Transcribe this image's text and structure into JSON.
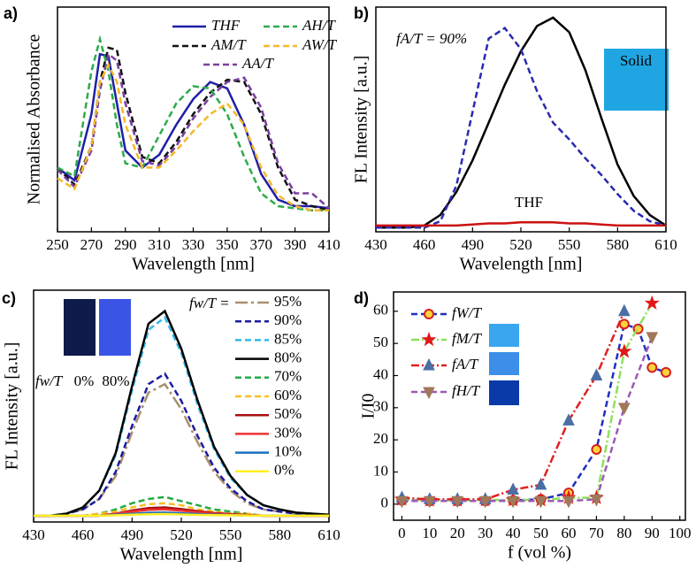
{
  "chart_data": [
    {
      "type": "line",
      "panel_label": "a)",
      "xlabel": "Wavelength [nm]",
      "ylabel": "Normalised Absorbance",
      "xlim": [
        250,
        410
      ],
      "xticks": [
        250,
        270,
        290,
        310,
        330,
        350,
        370,
        390,
        410
      ],
      "ylim": [
        0,
        1.05
      ],
      "x": [
        250,
        260,
        270,
        275,
        280,
        285,
        290,
        300,
        310,
        320,
        330,
        340,
        350,
        360,
        370,
        380,
        390,
        400,
        410
      ],
      "series": [
        {
          "name": "THF",
          "color": "#1f1fa8",
          "dash": "solid",
          "values": [
            0.3,
            0.24,
            0.55,
            0.83,
            0.82,
            0.6,
            0.38,
            0.3,
            0.36,
            0.5,
            0.62,
            0.7,
            0.67,
            0.5,
            0.27,
            0.15,
            0.12,
            0.12,
            0.11
          ]
        },
        {
          "name": "AM/T",
          "color": "#111111",
          "dash": "dashed",
          "values": [
            0.3,
            0.22,
            0.4,
            0.7,
            0.86,
            0.85,
            0.65,
            0.35,
            0.32,
            0.42,
            0.55,
            0.65,
            0.71,
            0.7,
            0.55,
            0.3,
            0.15,
            0.12,
            0.1
          ]
        },
        {
          "name": "AA/T",
          "color": "#7a3fa0",
          "dash": "dashed",
          "values": [
            0.29,
            0.21,
            0.38,
            0.66,
            0.83,
            0.8,
            0.6,
            0.33,
            0.31,
            0.4,
            0.53,
            0.63,
            0.7,
            0.72,
            0.58,
            0.32,
            0.18,
            0.18,
            0.11
          ]
        },
        {
          "name": "AH/T",
          "color": "#2eaa4a",
          "dash": "dashed",
          "values": [
            0.3,
            0.26,
            0.75,
            0.9,
            0.75,
            0.5,
            0.32,
            0.3,
            0.45,
            0.6,
            0.68,
            0.67,
            0.55,
            0.35,
            0.18,
            0.12,
            0.11,
            0.1,
            0.1
          ]
        },
        {
          "name": "AW/T",
          "color": "#f5b82a",
          "dash": "dashed",
          "values": [
            0.25,
            0.2,
            0.4,
            0.7,
            0.78,
            0.7,
            0.5,
            0.3,
            0.3,
            0.38,
            0.47,
            0.55,
            0.6,
            0.5,
            0.3,
            0.17,
            0.12,
            0.1,
            0.1
          ]
        }
      ]
    },
    {
      "type": "line",
      "panel_label": "b)",
      "xlabel": "Wavelength [nm]",
      "ylabel": "FL Intensity [a.u.]",
      "xlim": [
        430,
        610
      ],
      "xticks": [
        430,
        460,
        490,
        520,
        550,
        580,
        610
      ],
      "ylim": [
        -0.02,
        1.05
      ],
      "annotations": [
        "fA/T = 90%",
        "THF",
        "Solid"
      ],
      "x": [
        430,
        440,
        450,
        460,
        470,
        480,
        490,
        500,
        510,
        520,
        530,
        540,
        550,
        560,
        570,
        580,
        590,
        600,
        610
      ],
      "series": [
        {
          "color": "#000000",
          "dash": "solid",
          "values": [
            0,
            0,
            0,
            0.01,
            0.06,
            0.17,
            0.32,
            0.5,
            0.68,
            0.84,
            0.96,
            1.0,
            0.93,
            0.75,
            0.52,
            0.3,
            0.15,
            0.06,
            0.01
          ]
        },
        {
          "color": "#2a2ab0",
          "dash": "dashed",
          "values": [
            0,
            0,
            0,
            0,
            0.03,
            0.2,
            0.55,
            0.9,
            0.95,
            0.85,
            0.65,
            0.5,
            0.42,
            0.33,
            0.25,
            0.16,
            0.08,
            0.03,
            0.01
          ]
        },
        {
          "color": "#cc1111",
          "dash": "solid",
          "values": [
            0.01,
            0.01,
            0.01,
            0.01,
            0.01,
            0.01,
            0.015,
            0.02,
            0.02,
            0.025,
            0.025,
            0.025,
            0.02,
            0.02,
            0.015,
            0.01,
            0.01,
            0.01,
            0.01
          ]
        }
      ]
    },
    {
      "type": "line",
      "panel_label": "c)",
      "xlabel": "Wavelength [nm]",
      "ylabel": "FL Intensity [a.u.]",
      "xlim": [
        430,
        610
      ],
      "xticks": [
        430,
        460,
        490,
        520,
        550,
        580,
        610
      ],
      "ylim": [
        -0.03,
        1.08
      ],
      "legend_title": "fw/T =",
      "annotations": [
        "fw/T",
        "0%",
        "80%"
      ],
      "x": [
        430,
        440,
        450,
        460,
        470,
        480,
        490,
        500,
        510,
        520,
        530,
        540,
        550,
        560,
        570,
        580,
        590,
        600,
        610
      ],
      "series": [
        {
          "name": "95%",
          "color": "#a8906e",
          "dash": "longdashdot",
          "values": [
            0,
            0,
            0.01,
            0.03,
            0.08,
            0.19,
            0.4,
            0.59,
            0.63,
            0.51,
            0.35,
            0.21,
            0.12,
            0.06,
            0.03,
            0.02,
            0.01,
            0.01,
            0
          ]
        },
        {
          "name": "90%",
          "color": "#1c1ca0",
          "dash": "dashed",
          "values": [
            0,
            0,
            0.01,
            0.03,
            0.08,
            0.21,
            0.43,
            0.63,
            0.68,
            0.55,
            0.38,
            0.23,
            0.13,
            0.07,
            0.03,
            0.02,
            0.01,
            0.01,
            0
          ]
        },
        {
          "name": "85%",
          "color": "#35b8ea",
          "dash": "dashed",
          "values": [
            0,
            0,
            0.01,
            0.04,
            0.12,
            0.29,
            0.6,
            0.89,
            0.95,
            0.78,
            0.53,
            0.32,
            0.18,
            0.1,
            0.05,
            0.03,
            0.015,
            0.01,
            0.005
          ]
        },
        {
          "name": "80%",
          "color": "#000000",
          "dash": "solid",
          "values": [
            0,
            0,
            0.01,
            0.04,
            0.12,
            0.3,
            0.62,
            0.92,
            0.98,
            0.8,
            0.55,
            0.33,
            0.19,
            0.1,
            0.05,
            0.03,
            0.015,
            0.01,
            0.005
          ]
        },
        {
          "name": "70%",
          "color": "#22aa44",
          "dash": "dashed",
          "values": [
            0,
            0,
            0,
            0,
            0.01,
            0.03,
            0.06,
            0.08,
            0.09,
            0.07,
            0.05,
            0.03,
            0.02,
            0.01,
            0,
            0,
            0,
            0,
            0
          ]
        },
        {
          "name": "60%",
          "color": "#ffbb22",
          "dash": "dashed",
          "values": [
            0,
            0,
            0,
            0,
            0.01,
            0.02,
            0.04,
            0.055,
            0.06,
            0.05,
            0.03,
            0.02,
            0.01,
            0.01,
            0,
            0,
            0,
            0,
            0
          ]
        },
        {
          "name": "50%",
          "color": "#a81010",
          "dash": "solid",
          "values": [
            0,
            0,
            0,
            0,
            0,
            0.01,
            0.025,
            0.037,
            0.04,
            0.032,
            0.022,
            0.013,
            0.008,
            0.004,
            0,
            0,
            0,
            0,
            0
          ]
        },
        {
          "name": "30%",
          "color": "#ee3333",
          "dash": "solid",
          "values": [
            0,
            0,
            0,
            0,
            0,
            0.01,
            0.019,
            0.028,
            0.03,
            0.024,
            0.017,
            0.01,
            0.006,
            0.003,
            0,
            0,
            0,
            0,
            0
          ]
        },
        {
          "name": "10%",
          "color": "#1a6fbf",
          "dash": "solid",
          "values": [
            0,
            0,
            0,
            0,
            0,
            0.005,
            0.009,
            0.014,
            0.015,
            0.012,
            0.008,
            0.005,
            0.003,
            0.001,
            0,
            0,
            0,
            0,
            0
          ]
        },
        {
          "name": "0%",
          "color": "#ffee22",
          "dash": "solid",
          "values": [
            0,
            0,
            0,
            0,
            0,
            0.002,
            0.005,
            0.007,
            0.008,
            0.006,
            0.004,
            0.003,
            0.002,
            0.001,
            0,
            0,
            0,
            0,
            0
          ]
        }
      ]
    },
    {
      "type": "line",
      "panel_label": "d)",
      "xlabel": "f (vol %)",
      "ylabel": "I/I0",
      "xlim": [
        -3,
        102
      ],
      "xticks": [
        0,
        10,
        20,
        30,
        40,
        50,
        60,
        70,
        80,
        90,
        100
      ],
      "ylim": [
        -5,
        66
      ],
      "yticks": [
        0,
        10,
        20,
        30,
        40,
        50,
        60
      ],
      "series": [
        {
          "name": "fW/T",
          "color": "#1f2fc0",
          "dash": "dashed",
          "marker": "circle",
          "marker_color": "#ffd23a",
          "marker_edge": "#d42020",
          "text_color": "#000000",
          "x": [
            0,
            10,
            20,
            30,
            40,
            50,
            60,
            70,
            80,
            85,
            90,
            95
          ],
          "values": [
            1.2,
            1,
            1,
            1,
            1.2,
            1.5,
            3.5,
            17,
            56,
            54.5,
            42.5,
            41
          ]
        },
        {
          "name": "fM/T",
          "color": "#8ee05a",
          "dash": "dashdot",
          "marker": "star",
          "marker_color": "#e01818",
          "marker_edge": "#e01818",
          "text_color": "#9b59b6",
          "x": [
            0,
            10,
            20,
            30,
            40,
            50,
            60,
            70,
            80,
            90
          ],
          "values": [
            1.5,
            1.2,
            1.2,
            1.3,
            1.3,
            1.3,
            2,
            2,
            47.5,
            62.5
          ]
        },
        {
          "name": "fA/T",
          "color": "#e02020",
          "dash": "dashdot",
          "marker": "triangle",
          "marker_color": "#4a6fa5",
          "marker_edge": "#4a6fa5",
          "text_color": "#2255cc",
          "x": [
            0,
            10,
            20,
            30,
            40,
            50,
            60,
            70,
            80
          ],
          "values": [
            2,
            1.5,
            1.5,
            1.5,
            4.5,
            6,
            26,
            40,
            60
          ]
        },
        {
          "name": "fH/T",
          "color": "#9b59b6",
          "dash": "dashed",
          "marker": "triangle-down",
          "marker_color": "#a0785a",
          "marker_edge": "#a0785a",
          "text_color": "#55cc33",
          "x": [
            0,
            10,
            20,
            30,
            40,
            50,
            60,
            70,
            80,
            90
          ],
          "values": [
            1,
            1,
            1,
            1,
            1,
            1,
            1,
            1.5,
            30,
            52
          ]
        }
      ]
    }
  ]
}
